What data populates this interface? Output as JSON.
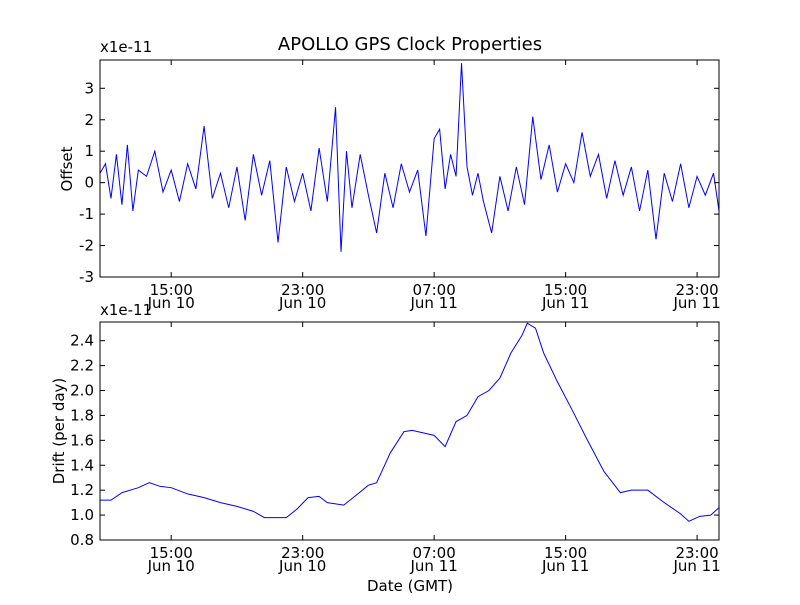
{
  "chart_data": {
    "title": "APOLLO GPS Clock Properties",
    "x_axis": {
      "label": "Date (GMT)",
      "range": [
        "2010-06-10T10:40",
        "2010-06-12T00:20"
      ],
      "ticks": [
        {
          "time": "2010-06-10T15:00",
          "line1": "15:00",
          "line2": "Jun 10"
        },
        {
          "time": "2010-06-10T23:00",
          "line1": "23:00",
          "line2": "Jun 10"
        },
        {
          "time": "2010-06-11T07:00",
          "line1": "07:00",
          "line2": "Jun 11"
        },
        {
          "time": "2010-06-11T15:00",
          "line1": "15:00",
          "line2": "Jun 11"
        },
        {
          "time": "2010-06-11T23:00",
          "line1": "23:00",
          "line2": "Jun 11"
        }
      ]
    },
    "charts": [
      {
        "type": "line",
        "ylabel": "Offset",
        "offset_text": "x1e-11",
        "ylim": [
          -3,
          3.9
        ],
        "yticks": [
          -3,
          -2,
          -1,
          0,
          1,
          2,
          3
        ],
        "ytick_labels": [
          "-3",
          "-2",
          "-1",
          "0",
          "1",
          "2",
          "3"
        ],
        "line_color": "#0000ff",
        "grid": false,
        "series_points": [
          [
            "2010-06-10T10:40",
            0.3
          ],
          [
            "2010-06-10T11:00",
            0.6
          ],
          [
            "2010-06-10T11:20",
            -0.5
          ],
          [
            "2010-06-10T11:40",
            0.9
          ],
          [
            "2010-06-10T12:00",
            -0.7
          ],
          [
            "2010-06-10T12:20",
            1.2
          ],
          [
            "2010-06-10T12:40",
            -0.9
          ],
          [
            "2010-06-10T13:00",
            0.4
          ],
          [
            "2010-06-10T13:30",
            0.2
          ],
          [
            "2010-06-10T14:00",
            1.0
          ],
          [
            "2010-06-10T14:30",
            -0.3
          ],
          [
            "2010-06-10T15:00",
            0.4
          ],
          [
            "2010-06-10T15:30",
            -0.6
          ],
          [
            "2010-06-10T16:00",
            0.6
          ],
          [
            "2010-06-10T16:30",
            -0.2
          ],
          [
            "2010-06-10T17:00",
            1.8
          ],
          [
            "2010-06-10T17:30",
            -0.5
          ],
          [
            "2010-06-10T18:00",
            0.3
          ],
          [
            "2010-06-10T18:30",
            -0.8
          ],
          [
            "2010-06-10T19:00",
            0.5
          ],
          [
            "2010-06-10T19:30",
            -1.2
          ],
          [
            "2010-06-10T20:00",
            0.9
          ],
          [
            "2010-06-10T20:30",
            -0.4
          ],
          [
            "2010-06-10T21:00",
            0.7
          ],
          [
            "2010-06-10T21:30",
            -1.9
          ],
          [
            "2010-06-10T22:00",
            0.5
          ],
          [
            "2010-06-10T22:30",
            -0.6
          ],
          [
            "2010-06-10T23:00",
            0.3
          ],
          [
            "2010-06-10T23:30",
            -0.9
          ],
          [
            "2010-06-11T00:00",
            1.1
          ],
          [
            "2010-06-11T00:30",
            -0.6
          ],
          [
            "2010-06-11T01:00",
            2.4
          ],
          [
            "2010-06-11T01:20",
            -2.2
          ],
          [
            "2010-06-11T01:40",
            1.0
          ],
          [
            "2010-06-11T02:00",
            -0.8
          ],
          [
            "2010-06-11T02:30",
            0.9
          ],
          [
            "2010-06-11T03:00",
            -0.4
          ],
          [
            "2010-06-11T03:30",
            -1.6
          ],
          [
            "2010-06-11T04:00",
            0.3
          ],
          [
            "2010-06-11T04:30",
            -0.8
          ],
          [
            "2010-06-11T05:00",
            0.6
          ],
          [
            "2010-06-11T05:30",
            -0.3
          ],
          [
            "2010-06-11T06:00",
            0.4
          ],
          [
            "2010-06-11T06:30",
            -1.7
          ],
          [
            "2010-06-11T07:00",
            1.4
          ],
          [
            "2010-06-11T07:20",
            1.7
          ],
          [
            "2010-06-11T07:40",
            -0.2
          ],
          [
            "2010-06-11T08:00",
            0.9
          ],
          [
            "2010-06-11T08:20",
            0.2
          ],
          [
            "2010-06-11T08:40",
            3.8
          ],
          [
            "2010-06-11T09:00",
            0.5
          ],
          [
            "2010-06-11T09:20",
            -0.4
          ],
          [
            "2010-06-11T09:40",
            0.3
          ],
          [
            "2010-06-11T10:00",
            -0.6
          ],
          [
            "2010-06-11T10:30",
            -1.6
          ],
          [
            "2010-06-11T11:00",
            0.2
          ],
          [
            "2010-06-11T11:30",
            -0.9
          ],
          [
            "2010-06-11T12:00",
            0.5
          ],
          [
            "2010-06-11T12:30",
            -0.7
          ],
          [
            "2010-06-11T13:00",
            2.1
          ],
          [
            "2010-06-11T13:30",
            0.1
          ],
          [
            "2010-06-11T14:00",
            1.2
          ],
          [
            "2010-06-11T14:30",
            -0.3
          ],
          [
            "2010-06-11T15:00",
            0.6
          ],
          [
            "2010-06-11T15:30",
            0.0
          ],
          [
            "2010-06-11T16:00",
            1.6
          ],
          [
            "2010-06-11T16:30",
            0.2
          ],
          [
            "2010-06-11T17:00",
            0.9
          ],
          [
            "2010-06-11T17:30",
            -0.5
          ],
          [
            "2010-06-11T18:00",
            0.7
          ],
          [
            "2010-06-11T18:30",
            -0.4
          ],
          [
            "2010-06-11T19:00",
            0.5
          ],
          [
            "2010-06-11T19:30",
            -0.9
          ],
          [
            "2010-06-11T20:00",
            0.4
          ],
          [
            "2010-06-11T20:30",
            -1.8
          ],
          [
            "2010-06-11T21:00",
            0.3
          ],
          [
            "2010-06-11T21:30",
            -0.6
          ],
          [
            "2010-06-11T22:00",
            0.6
          ],
          [
            "2010-06-11T22:30",
            -0.8
          ],
          [
            "2010-06-11T23:00",
            0.2
          ],
          [
            "2010-06-11T23:30",
            -0.4
          ],
          [
            "2010-06-12T00:00",
            0.3
          ],
          [
            "2010-06-12T00:20",
            -0.9
          ]
        ]
      },
      {
        "type": "line",
        "ylabel": "Drift (per day)",
        "offset_text": "x1e-11",
        "ylim": [
          0.8,
          2.55
        ],
        "yticks": [
          0.8,
          1.0,
          1.2,
          1.4,
          1.6,
          1.8,
          2.0,
          2.2,
          2.4
        ],
        "ytick_labels": [
          "0.8",
          "1.0",
          "1.2",
          "1.4",
          "1.6",
          "1.8",
          "2.0",
          "2.2",
          "2.4"
        ],
        "line_color": "#0000ff",
        "grid": false,
        "series_points": [
          [
            "2010-06-10T10:40",
            1.12
          ],
          [
            "2010-06-10T11:20",
            1.12
          ],
          [
            "2010-06-10T12:00",
            1.18
          ],
          [
            "2010-06-10T13:00",
            1.22
          ],
          [
            "2010-06-10T13:40",
            1.26
          ],
          [
            "2010-06-10T14:20",
            1.23
          ],
          [
            "2010-06-10T15:00",
            1.22
          ],
          [
            "2010-06-10T16:00",
            1.17
          ],
          [
            "2010-06-10T17:00",
            1.14
          ],
          [
            "2010-06-10T18:00",
            1.1
          ],
          [
            "2010-06-10T19:00",
            1.07
          ],
          [
            "2010-06-10T20:00",
            1.03
          ],
          [
            "2010-06-10T20:40",
            0.98
          ],
          [
            "2010-06-10T21:30",
            0.98
          ],
          [
            "2010-06-10T22:00",
            0.98
          ],
          [
            "2010-06-10T22:40",
            1.05
          ],
          [
            "2010-06-10T23:20",
            1.14
          ],
          [
            "2010-06-11T00:00",
            1.15
          ],
          [
            "2010-06-11T00:30",
            1.1
          ],
          [
            "2010-06-11T01:30",
            1.08
          ],
          [
            "2010-06-11T02:10",
            1.15
          ],
          [
            "2010-06-11T03:00",
            1.24
          ],
          [
            "2010-06-11T03:30",
            1.26
          ],
          [
            "2010-06-11T04:20",
            1.5
          ],
          [
            "2010-06-11T05:10",
            1.67
          ],
          [
            "2010-06-11T05:40",
            1.68
          ],
          [
            "2010-06-11T06:20",
            1.66
          ],
          [
            "2010-06-11T07:00",
            1.64
          ],
          [
            "2010-06-11T07:40",
            1.55
          ],
          [
            "2010-06-11T08:20",
            1.75
          ],
          [
            "2010-06-11T09:00",
            1.8
          ],
          [
            "2010-06-11T09:40",
            1.95
          ],
          [
            "2010-06-11T10:20",
            2.0
          ],
          [
            "2010-06-11T11:00",
            2.1
          ],
          [
            "2010-06-11T11:40",
            2.3
          ],
          [
            "2010-06-11T12:20",
            2.44
          ],
          [
            "2010-06-11T12:40",
            2.54
          ],
          [
            "2010-06-11T13:10",
            2.5
          ],
          [
            "2010-06-11T13:40",
            2.3
          ],
          [
            "2010-06-11T14:30",
            2.07
          ],
          [
            "2010-06-11T15:20",
            1.86
          ],
          [
            "2010-06-11T16:20",
            1.6
          ],
          [
            "2010-06-11T17:20",
            1.35
          ],
          [
            "2010-06-11T18:20",
            1.18
          ],
          [
            "2010-06-11T19:00",
            1.2
          ],
          [
            "2010-06-11T20:00",
            1.2
          ],
          [
            "2010-06-11T21:00",
            1.1
          ],
          [
            "2010-06-11T22:00",
            1.01
          ],
          [
            "2010-06-11T22:30",
            0.95
          ],
          [
            "2010-06-11T23:10",
            0.99
          ],
          [
            "2010-06-11T23:50",
            1.0
          ],
          [
            "2010-06-12T00:20",
            1.06
          ]
        ]
      }
    ]
  }
}
